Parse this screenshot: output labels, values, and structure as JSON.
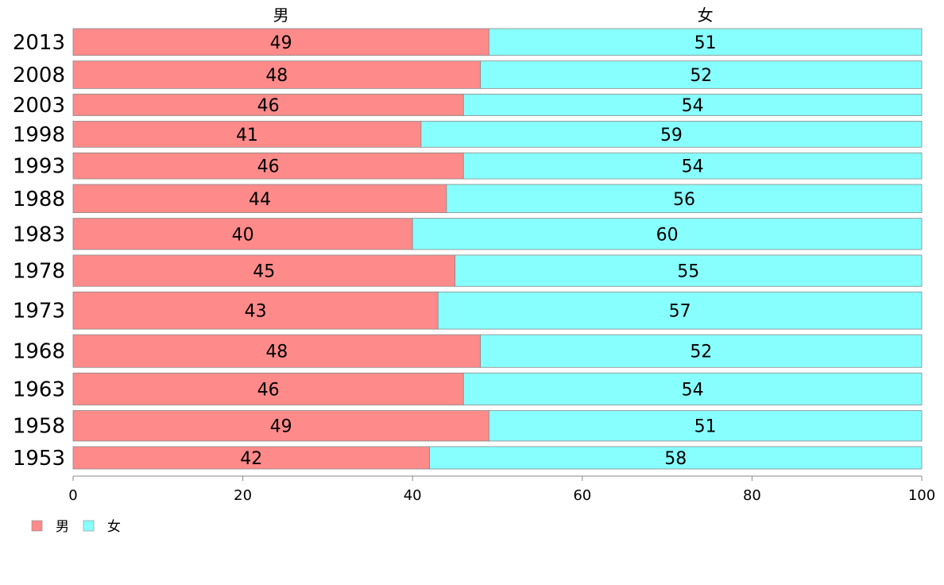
{
  "chart_data": {
    "type": "bar",
    "orientation": "horizontal",
    "stacked": true,
    "categories": [
      "2013",
      "2008",
      "2003",
      "1998",
      "1993",
      "1988",
      "1983",
      "1978",
      "1973",
      "1968",
      "1963",
      "1958",
      "1953"
    ],
    "series": [
      {
        "name": "男",
        "color": "#ff8a8a",
        "values": [
          49,
          48,
          46,
          41,
          46,
          44,
          40,
          45,
          43,
          48,
          46,
          49,
          42
        ]
      },
      {
        "name": "女",
        "color": "#88ffff",
        "values": [
          51,
          52,
          54,
          59,
          54,
          56,
          60,
          55,
          57,
          52,
          54,
          51,
          58
        ]
      }
    ],
    "bar_widths_relative": [
      36,
      37,
      29,
      35,
      35,
      38,
      42,
      42,
      50,
      44,
      43,
      41,
      30
    ],
    "xlim": [
      0,
      100
    ],
    "xticks": [
      0,
      20,
      40,
      60,
      80,
      100
    ],
    "grid": false,
    "legend_position": "bottom-left"
  }
}
